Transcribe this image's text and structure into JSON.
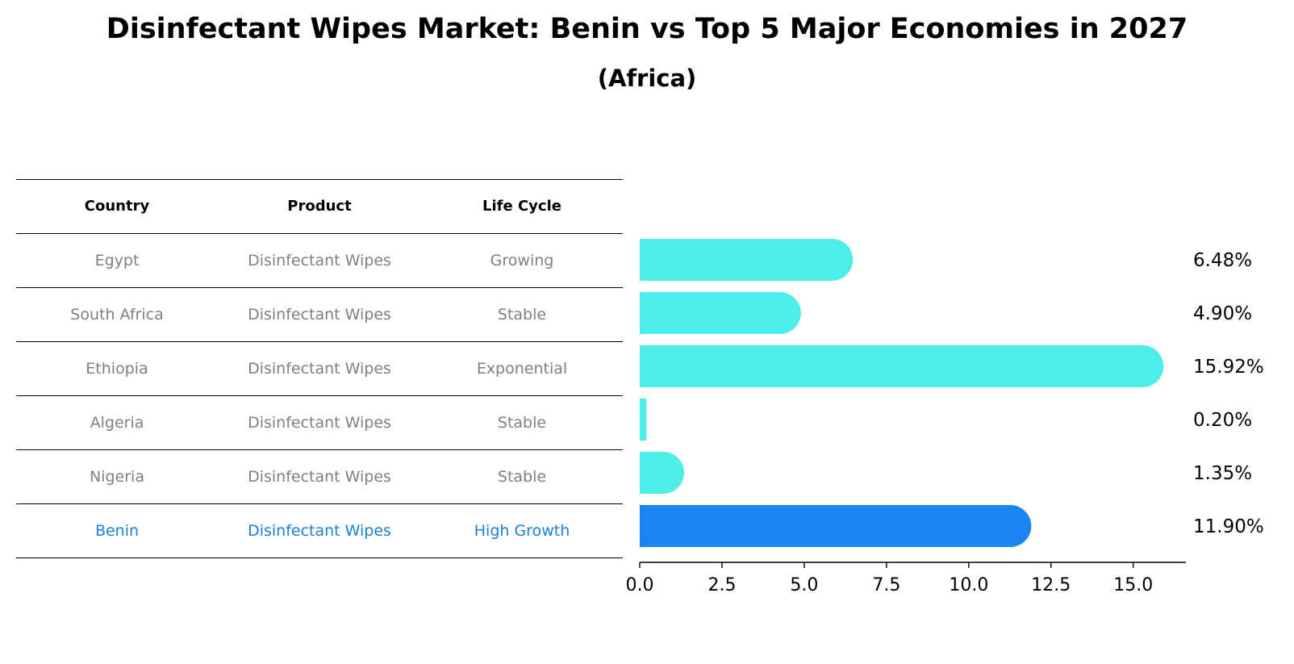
{
  "title": "Disinfectant Wipes Market: Benin vs Top 5 Major Economies in 2027",
  "subtitle": "(Africa)",
  "table": {
    "headers": [
      "Country",
      "Product",
      "Life Cycle"
    ],
    "rows": [
      [
        "Egypt",
        "Disinfectant Wipes",
        "Growing"
      ],
      [
        "South Africa",
        "Disinfectant Wipes",
        "Stable"
      ],
      [
        "Ethiopia",
        "Disinfectant Wipes",
        "Exponential"
      ],
      [
        "Algeria",
        "Disinfectant Wipes",
        "Stable"
      ],
      [
        "Nigeria",
        "Disinfectant Wipes",
        "Stable"
      ],
      [
        "Benin",
        "Disinfectant Wipes",
        "High Growth"
      ]
    ],
    "highlight_row": 5
  },
  "colors": {
    "bar": "#4deee9",
    "highlight": "#1a85f0",
    "highlight_text": "#1a7fd6",
    "muted_text": "#7f7f7f"
  },
  "chart_data": {
    "type": "bar",
    "orientation": "horizontal",
    "categories": [
      "Egypt",
      "South Africa",
      "Ethiopia",
      "Algeria",
      "Nigeria",
      "Benin"
    ],
    "values": [
      6.48,
      4.9,
      15.92,
      0.2,
      1.35,
      11.9
    ],
    "value_labels": [
      "6.48%",
      "4.90%",
      "15.92%",
      "0.20%",
      "1.35%",
      "11.90%"
    ],
    "highlight_index": 5,
    "xlim": [
      0,
      16.6
    ],
    "xticks": [
      0.0,
      2.5,
      5.0,
      7.5,
      10.0,
      12.5,
      15.0
    ],
    "xtick_labels": [
      "0.0",
      "2.5",
      "5.0",
      "7.5",
      "10.0",
      "12.5",
      "15.0"
    ],
    "grid": false
  }
}
